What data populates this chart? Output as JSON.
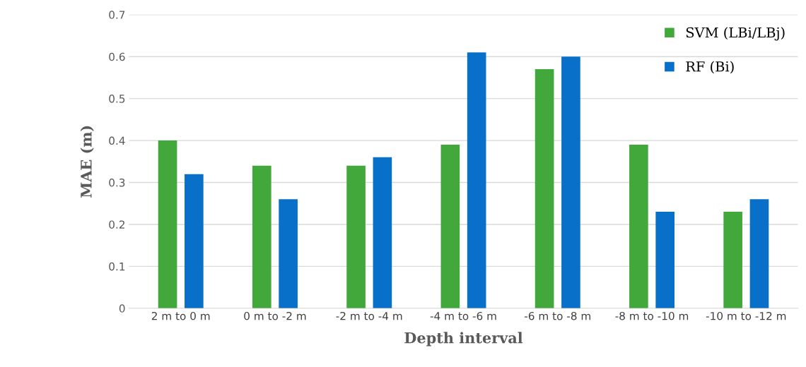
{
  "chart_data": {
    "type": "bar",
    "xlabel": "Depth interval",
    "ylabel": "MAE (m)",
    "categories": [
      "2 m to 0 m",
      "0 m to -2 m",
      "-2 m to -4 m",
      "-4 m to -6 m",
      "-6 m to -8 m",
      "-8 m to -10 m",
      "-10 m to -12 m"
    ],
    "series": [
      {
        "name": "SVM (LBi/LBj)",
        "color": "#43a83c",
        "values": [
          0.4,
          0.34,
          0.34,
          0.39,
          0.57,
          0.39,
          0.23
        ]
      },
      {
        "name": "RF (Bi)",
        "color": "#0870c8",
        "values": [
          0.32,
          0.26,
          0.36,
          0.61,
          0.6,
          0.23,
          0.26
        ]
      }
    ],
    "ylim": [
      0,
      0.7
    ],
    "yticks": [
      0,
      0.1,
      0.2,
      0.3,
      0.4,
      0.5,
      0.6,
      0.7
    ],
    "grid": "y",
    "legend": "top right"
  }
}
